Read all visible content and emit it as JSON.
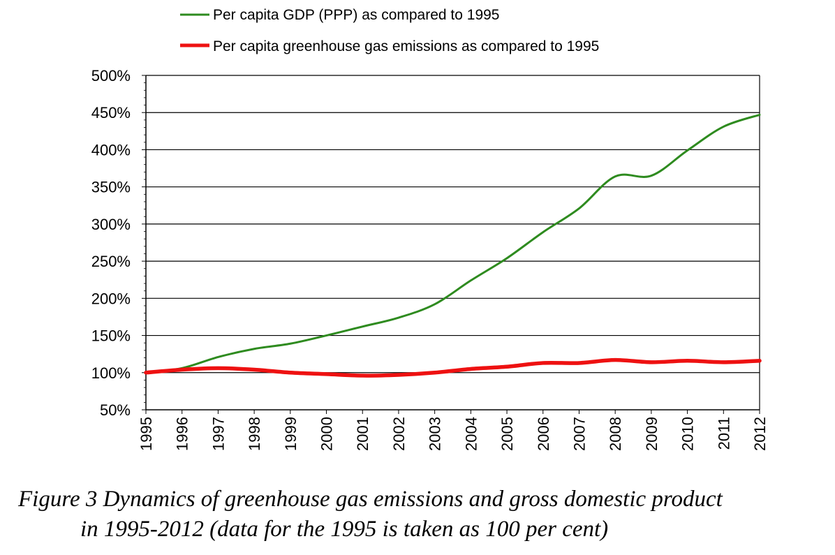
{
  "chart_data": {
    "type": "line",
    "categories": [
      "1995",
      "1996",
      "1997",
      "1998",
      "1999",
      "2000",
      "2001",
      "2002",
      "2003",
      "2004",
      "2005",
      "2006",
      "2007",
      "2008",
      "2009",
      "2010",
      "2011",
      "2012"
    ],
    "series": [
      {
        "name": "Per capita GDP (PPP) as compared to 1995",
        "color": "#2e8b1f",
        "values": [
          100,
          106,
          121,
          132,
          139,
          150,
          162,
          174,
          192,
          224,
          254,
          289,
          321,
          364,
          365,
          399,
          431,
          447
        ]
      },
      {
        "name": "Per capita greenhouse gas emissions as compared to 1995",
        "color": "#ee1111",
        "values": [
          100,
          104,
          106,
          104,
          100,
          98,
          96,
          97,
          100,
          105,
          108,
          113,
          113,
          117,
          114,
          116,
          114,
          116
        ]
      }
    ],
    "ylim": [
      50,
      500
    ],
    "yticks": [
      50,
      100,
      150,
      200,
      250,
      300,
      350,
      400,
      450,
      500
    ],
    "ytick_labels": [
      "50%",
      "100%",
      "150%",
      "200%",
      "250%",
      "300%",
      "350%",
      "400%",
      "450%",
      "500%"
    ],
    "grid": "horizontal",
    "legend_position": "top"
  },
  "caption": {
    "line1": "Figure 3 Dynamics of greenhouse gas emissions and gross domestic product",
    "line2": "in 1995-2012 (data for the 1995 is taken as 100 per cent)"
  }
}
